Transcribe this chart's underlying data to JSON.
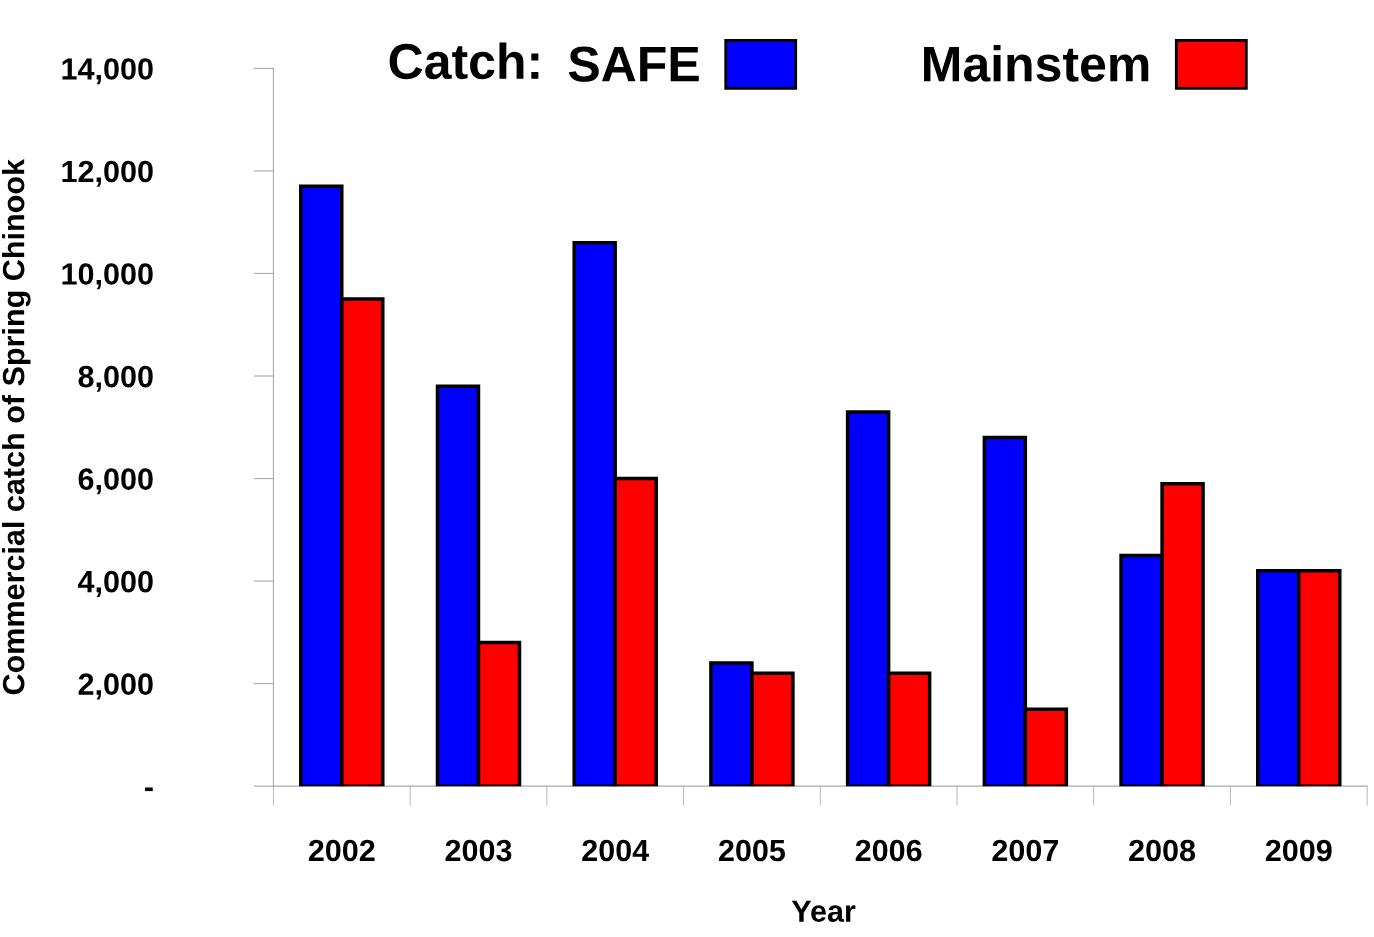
{
  "chart_data": {
    "type": "bar",
    "xlabel": "Year",
    "ylabel": "Commercial catch of Spring Chinook",
    "legend_title": "Catch:",
    "categories": [
      "2002",
      "2003",
      "2004",
      "2005",
      "2006",
      "2007",
      "2008",
      "2009"
    ],
    "series": [
      {
        "name": "SAFE",
        "color": "#0000ff",
        "values": [
          11700,
          7800,
          10600,
          2400,
          7300,
          6800,
          4500,
          4200
        ]
      },
      {
        "name": "Mainstem",
        "color": "#ff0000",
        "values": [
          9500,
          2800,
          6000,
          2200,
          2200,
          1500,
          5900,
          4200
        ]
      }
    ],
    "ylim": [
      0,
      14000
    ],
    "yticks": [
      {
        "value": 0,
        "label": "-"
      },
      {
        "value": 2000,
        "label": "2,000"
      },
      {
        "value": 4000,
        "label": "4,000"
      },
      {
        "value": 6000,
        "label": "6,000"
      },
      {
        "value": 8000,
        "label": "8,000"
      },
      {
        "value": 10000,
        "label": "10,000"
      },
      {
        "value": 12000,
        "label": "12,000"
      },
      {
        "value": 14000,
        "label": "14,000"
      }
    ],
    "legend": "top",
    "grid": false
  }
}
